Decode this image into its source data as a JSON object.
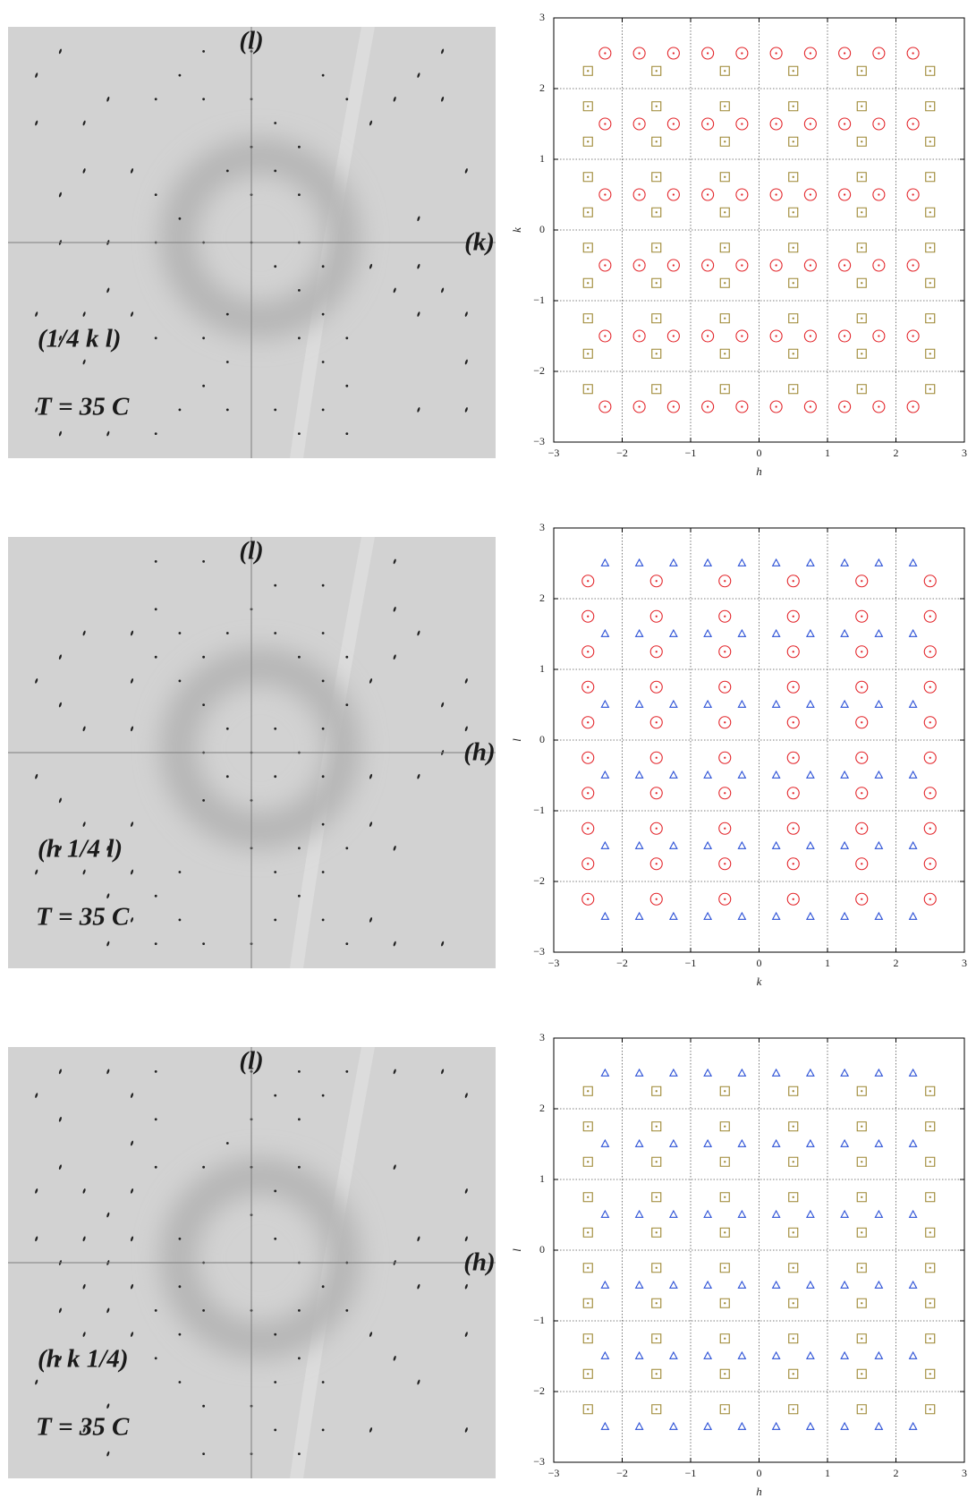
{
  "images": [
    {
      "axis_top": "(l)",
      "axis_right": "(k)",
      "plane": "(1/4 k l)",
      "temperature": "T = 35 C"
    },
    {
      "axis_top": "(l)",
      "axis_right": "(h)",
      "plane": "(h 1/4 l)",
      "temperature": "T = 35 C"
    },
    {
      "axis_top": "(l)",
      "axis_right": "(h)",
      "plane": "(h k 1/4)",
      "temperature": "T = 35 C"
    }
  ],
  "chart_data": [
    {
      "type": "scatter",
      "xlabel": "h",
      "ylabel": "k",
      "xlim": [
        -3,
        3
      ],
      "ylim": [
        -3,
        3
      ],
      "xticks": [
        {
          "value": -3,
          "label": "−3"
        },
        {
          "value": -2,
          "label": "−2"
        },
        {
          "value": -1,
          "label": "−1"
        },
        0,
        1,
        2,
        3
      ],
      "yticks": [
        {
          "value": -3,
          "label": "−3"
        },
        {
          "value": -2,
          "label": "−2"
        },
        {
          "value": -1,
          "label": "−1"
        },
        0,
        1,
        2,
        3
      ],
      "grid": true,
      "series": [
        {
          "marker": "circle",
          "color": "#e3262b",
          "x": [
            -2.25,
            -1.75,
            -1.25,
            -0.75,
            -0.25,
            0.25,
            0.75,
            1.25,
            1.75,
            2.25,
            -2.25,
            -1.75,
            -1.25,
            -0.75,
            -0.25,
            0.25,
            0.75,
            1.25,
            1.75,
            2.25,
            -2.25,
            -1.75,
            -1.25,
            -0.75,
            -0.25,
            0.25,
            0.75,
            1.25,
            1.75,
            2.25,
            -2.25,
            -1.75,
            -1.25,
            -0.75,
            -0.25,
            0.25,
            0.75,
            1.25,
            1.75,
            2.25,
            -2.25,
            -1.75,
            -1.25,
            -0.75,
            -0.25,
            0.25,
            0.75,
            1.25,
            1.75,
            2.25,
            -2.25,
            -1.75,
            -1.25,
            -0.75,
            -0.25,
            0.25,
            0.75,
            1.25,
            1.75,
            2.25
          ],
          "y": [
            2.5,
            2.5,
            2.5,
            2.5,
            2.5,
            2.5,
            2.5,
            2.5,
            2.5,
            2.5,
            1.5,
            1.5,
            1.5,
            1.5,
            1.5,
            1.5,
            1.5,
            1.5,
            1.5,
            1.5,
            0.5,
            0.5,
            0.5,
            0.5,
            0.5,
            0.5,
            0.5,
            0.5,
            0.5,
            0.5,
            -0.5,
            -0.5,
            -0.5,
            -0.5,
            -0.5,
            -0.5,
            -0.5,
            -0.5,
            -0.5,
            -0.5,
            -1.5,
            -1.5,
            -1.5,
            -1.5,
            -1.5,
            -1.5,
            -1.5,
            -1.5,
            -1.5,
            -1.5,
            -2.5,
            -2.5,
            -2.5,
            -2.5,
            -2.5,
            -2.5,
            -2.5,
            -2.5,
            -2.5,
            -2.5
          ]
        },
        {
          "marker": "square",
          "color": "#9c8630",
          "x": [
            -2.5,
            -1.5,
            -0.5,
            0.5,
            1.5,
            2.5,
            -2.5,
            -1.5,
            -0.5,
            0.5,
            1.5,
            2.5,
            -2.5,
            -1.5,
            -0.5,
            0.5,
            1.5,
            2.5,
            -2.5,
            -1.5,
            -0.5,
            0.5,
            1.5,
            2.5,
            -2.5,
            -1.5,
            -0.5,
            0.5,
            1.5,
            2.5,
            -2.5,
            -1.5,
            -0.5,
            0.5,
            1.5,
            2.5,
            -2.5,
            -1.5,
            -0.5,
            0.5,
            1.5,
            2.5,
            -2.5,
            -1.5,
            -0.5,
            0.5,
            1.5,
            2.5,
            -2.5,
            -1.5,
            -0.5,
            0.5,
            1.5,
            2.5,
            -2.5,
            -1.5,
            -0.5,
            0.5,
            1.5,
            2.5
          ],
          "y": [
            2.25,
            2.25,
            2.25,
            2.25,
            2.25,
            2.25,
            1.75,
            1.75,
            1.75,
            1.75,
            1.75,
            1.75,
            1.25,
            1.25,
            1.25,
            1.25,
            1.25,
            1.25,
            0.75,
            0.75,
            0.75,
            0.75,
            0.75,
            0.75,
            0.25,
            0.25,
            0.25,
            0.25,
            0.25,
            0.25,
            -0.25,
            -0.25,
            -0.25,
            -0.25,
            -0.25,
            -0.25,
            -0.75,
            -0.75,
            -0.75,
            -0.75,
            -0.75,
            -0.75,
            -1.25,
            -1.25,
            -1.25,
            -1.25,
            -1.25,
            -1.25,
            -1.75,
            -1.75,
            -1.75,
            -1.75,
            -1.75,
            -1.75,
            -2.25,
            -2.25,
            -2.25,
            -2.25,
            -2.25,
            -2.25
          ]
        }
      ]
    },
    {
      "type": "scatter",
      "xlabel": "k",
      "ylabel": "l",
      "xlim": [
        -3,
        3
      ],
      "ylim": [
        -3,
        3
      ],
      "xticks": [
        {
          "value": -3,
          "label": "−3"
        },
        {
          "value": -2,
          "label": "−2"
        },
        {
          "value": -1,
          "label": "−1"
        },
        0,
        1,
        2,
        3
      ],
      "yticks": [
        {
          "value": -3,
          "label": "−3"
        },
        {
          "value": -2,
          "label": "−2"
        },
        {
          "value": -1,
          "label": "−1"
        },
        0,
        1,
        2,
        3
      ],
      "grid": true,
      "series": [
        {
          "marker": "triangle",
          "color": "#2b50d6",
          "x": [
            -2.25,
            -1.75,
            -1.25,
            -0.75,
            -0.25,
            0.25,
            0.75,
            1.25,
            1.75,
            2.25,
            -2.25,
            -1.75,
            -1.25,
            -0.75,
            -0.25,
            0.25,
            0.75,
            1.25,
            1.75,
            2.25,
            -2.25,
            -1.75,
            -1.25,
            -0.75,
            -0.25,
            0.25,
            0.75,
            1.25,
            1.75,
            2.25,
            -2.25,
            -1.75,
            -1.25,
            -0.75,
            -0.25,
            0.25,
            0.75,
            1.25,
            1.75,
            2.25,
            -2.25,
            -1.75,
            -1.25,
            -0.75,
            -0.25,
            0.25,
            0.75,
            1.25,
            1.75,
            2.25,
            -2.25,
            -1.75,
            -1.25,
            -0.75,
            -0.25,
            0.25,
            0.75,
            1.25,
            1.75,
            2.25
          ],
          "y": [
            2.5,
            2.5,
            2.5,
            2.5,
            2.5,
            2.5,
            2.5,
            2.5,
            2.5,
            2.5,
            1.5,
            1.5,
            1.5,
            1.5,
            1.5,
            1.5,
            1.5,
            1.5,
            1.5,
            1.5,
            0.5,
            0.5,
            0.5,
            0.5,
            0.5,
            0.5,
            0.5,
            0.5,
            0.5,
            0.5,
            -0.5,
            -0.5,
            -0.5,
            -0.5,
            -0.5,
            -0.5,
            -0.5,
            -0.5,
            -0.5,
            -0.5,
            -1.5,
            -1.5,
            -1.5,
            -1.5,
            -1.5,
            -1.5,
            -1.5,
            -1.5,
            -1.5,
            -1.5,
            -2.5,
            -2.5,
            -2.5,
            -2.5,
            -2.5,
            -2.5,
            -2.5,
            -2.5,
            -2.5,
            -2.5
          ]
        },
        {
          "marker": "circle",
          "color": "#e3262b",
          "x": [
            -2.5,
            -1.5,
            -0.5,
            0.5,
            1.5,
            2.5,
            -2.5,
            -1.5,
            -0.5,
            0.5,
            1.5,
            2.5,
            -2.5,
            -1.5,
            -0.5,
            0.5,
            1.5,
            2.5,
            -2.5,
            -1.5,
            -0.5,
            0.5,
            1.5,
            2.5,
            -2.5,
            -1.5,
            -0.5,
            0.5,
            1.5,
            2.5,
            -2.5,
            -1.5,
            -0.5,
            0.5,
            1.5,
            2.5,
            -2.5,
            -1.5,
            -0.5,
            0.5,
            1.5,
            2.5,
            -2.5,
            -1.5,
            -0.5,
            0.5,
            1.5,
            2.5,
            -2.5,
            -1.5,
            -0.5,
            0.5,
            1.5,
            2.5,
            -2.5,
            -1.5,
            -0.5,
            0.5,
            1.5,
            2.5
          ],
          "y": [
            2.25,
            2.25,
            2.25,
            2.25,
            2.25,
            2.25,
            1.75,
            1.75,
            1.75,
            1.75,
            1.75,
            1.75,
            1.25,
            1.25,
            1.25,
            1.25,
            1.25,
            1.25,
            0.75,
            0.75,
            0.75,
            0.75,
            0.75,
            0.75,
            0.25,
            0.25,
            0.25,
            0.25,
            0.25,
            0.25,
            -0.25,
            -0.25,
            -0.25,
            -0.25,
            -0.25,
            -0.25,
            -0.75,
            -0.75,
            -0.75,
            -0.75,
            -0.75,
            -0.75,
            -1.25,
            -1.25,
            -1.25,
            -1.25,
            -1.25,
            -1.25,
            -1.75,
            -1.75,
            -1.75,
            -1.75,
            -1.75,
            -1.75,
            -2.25,
            -2.25,
            -2.25,
            -2.25,
            -2.25,
            -2.25
          ]
        }
      ]
    },
    {
      "type": "scatter",
      "xlabel": "h",
      "ylabel": "l",
      "xlim": [
        -3,
        3
      ],
      "ylim": [
        -3,
        3
      ],
      "xticks": [
        {
          "value": -3,
          "label": "−3"
        },
        {
          "value": -2,
          "label": "−2"
        },
        {
          "value": -1,
          "label": "−1"
        },
        0,
        1,
        2,
        3
      ],
      "yticks": [
        {
          "value": -3,
          "label": "−3"
        },
        {
          "value": -2,
          "label": "−2"
        },
        {
          "value": -1,
          "label": "−1"
        },
        0,
        1,
        2,
        3
      ],
      "grid": true,
      "series": [
        {
          "marker": "triangle",
          "color": "#2b50d6",
          "x": [
            -2.25,
            -1.75,
            -1.25,
            -0.75,
            -0.25,
            0.25,
            0.75,
            1.25,
            1.75,
            2.25,
            -2.25,
            -1.75,
            -1.25,
            -0.75,
            -0.25,
            0.25,
            0.75,
            1.25,
            1.75,
            2.25,
            -2.25,
            -1.75,
            -1.25,
            -0.75,
            -0.25,
            0.25,
            0.75,
            1.25,
            1.75,
            2.25,
            -2.25,
            -1.75,
            -1.25,
            -0.75,
            -0.25,
            0.25,
            0.75,
            1.25,
            1.75,
            2.25,
            -2.25,
            -1.75,
            -1.25,
            -0.75,
            -0.25,
            0.25,
            0.75,
            1.25,
            1.75,
            2.25,
            -2.25,
            -1.75,
            -1.25,
            -0.75,
            -0.25,
            0.25,
            0.75,
            1.25,
            1.75,
            2.25
          ],
          "y": [
            2.5,
            2.5,
            2.5,
            2.5,
            2.5,
            2.5,
            2.5,
            2.5,
            2.5,
            2.5,
            1.5,
            1.5,
            1.5,
            1.5,
            1.5,
            1.5,
            1.5,
            1.5,
            1.5,
            1.5,
            0.5,
            0.5,
            0.5,
            0.5,
            0.5,
            0.5,
            0.5,
            0.5,
            0.5,
            0.5,
            -0.5,
            -0.5,
            -0.5,
            -0.5,
            -0.5,
            -0.5,
            -0.5,
            -0.5,
            -0.5,
            -0.5,
            -1.5,
            -1.5,
            -1.5,
            -1.5,
            -1.5,
            -1.5,
            -1.5,
            -1.5,
            -1.5,
            -1.5,
            -2.5,
            -2.5,
            -2.5,
            -2.5,
            -2.5,
            -2.5,
            -2.5,
            -2.5,
            -2.5,
            -2.5
          ]
        },
        {
          "marker": "square",
          "color": "#9c8630",
          "x": [
            -2.5,
            -1.5,
            -0.5,
            0.5,
            1.5,
            2.5,
            -2.5,
            -1.5,
            -0.5,
            0.5,
            1.5,
            2.5,
            -2.5,
            -1.5,
            -0.5,
            0.5,
            1.5,
            2.5,
            -2.5,
            -1.5,
            -0.5,
            0.5,
            1.5,
            2.5,
            -2.5,
            -1.5,
            -0.5,
            0.5,
            1.5,
            2.5,
            -2.5,
            -1.5,
            -0.5,
            0.5,
            1.5,
            2.5,
            -2.5,
            -1.5,
            -0.5,
            0.5,
            1.5,
            2.5,
            -2.5,
            -1.5,
            -0.5,
            0.5,
            1.5,
            2.5,
            -2.5,
            -1.5,
            -0.5,
            0.5,
            1.5,
            2.5,
            -2.5,
            -1.5,
            -0.5,
            0.5,
            1.5,
            2.5
          ],
          "y": [
            2.25,
            2.25,
            2.25,
            2.25,
            2.25,
            2.25,
            1.75,
            1.75,
            1.75,
            1.75,
            1.75,
            1.75,
            1.25,
            1.25,
            1.25,
            1.25,
            1.25,
            1.25,
            0.75,
            0.75,
            0.75,
            0.75,
            0.75,
            0.75,
            0.25,
            0.25,
            0.25,
            0.25,
            0.25,
            0.25,
            -0.25,
            -0.25,
            -0.25,
            -0.25,
            -0.25,
            -0.25,
            -0.75,
            -0.75,
            -0.75,
            -0.75,
            -0.75,
            -0.75,
            -1.25,
            -1.25,
            -1.25,
            -1.25,
            -1.25,
            -1.25,
            -1.75,
            -1.75,
            -1.75,
            -1.75,
            -1.75,
            -1.75,
            -2.25,
            -2.25,
            -2.25,
            -2.25,
            -2.25,
            -2.25
          ]
        }
      ]
    }
  ]
}
